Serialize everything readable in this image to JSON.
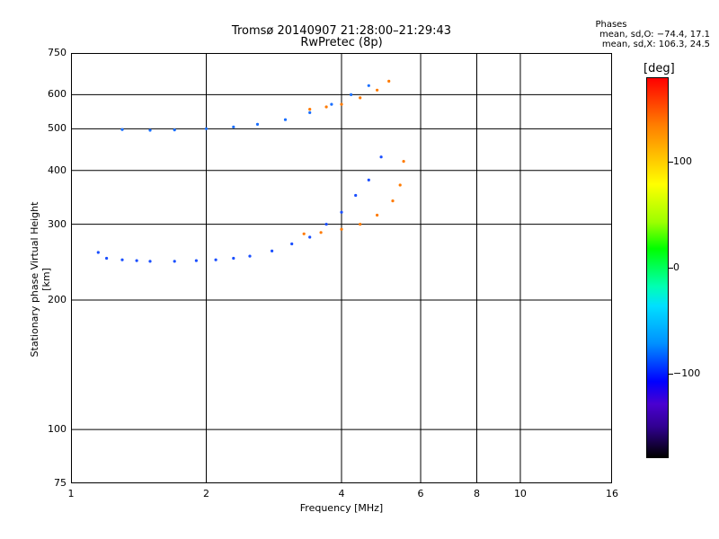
{
  "chart_data": {
    "type": "scatter",
    "title": "Tromsø 20140907 21:28:00–21:29:43",
    "subtitle": "RwPretec (8p)",
    "xlabel": "Frequency [MHz]",
    "ylabel": "Stationary phase Virtual Height [km]",
    "x_scale": "log",
    "y_scale": "log",
    "xlim": [
      1,
      16
    ],
    "ylim": [
      75,
      750
    ],
    "x_ticks": [
      1,
      2,
      4,
      6,
      8,
      10,
      16
    ],
    "y_ticks": [
      75,
      100,
      200,
      300,
      400,
      500,
      600,
      750
    ],
    "grid": true,
    "phase_stats": {
      "heading": "Phases",
      "o_mode": "mean, sd,O: −74.4, 17.1",
      "x_mode": "mean, sd,X: 106.3, 24.5"
    },
    "colorbar": {
      "title": "[deg]",
      "ticks": [
        "100",
        "0",
        "−100"
      ],
      "tick_values": [
        100,
        0,
        -100
      ],
      "range": [
        -180,
        180
      ],
      "colormap": "rainbow: black - purple - blue - cyan - green - yellow - orange - red"
    },
    "series": [
      {
        "name": "",
        "description_trace": "F-layer trace (lower)",
        "color": "#1a4fff",
        "x": [
          1.15,
          1.2,
          1.3,
          1.4,
          1.5,
          1.7,
          1.9,
          2.1,
          2.3,
          2.5,
          2.8,
          3.1,
          3.4,
          3.7,
          4.0,
          4.3,
          4.6,
          4.9
        ],
        "y": [
          258,
          250,
          248,
          247,
          246,
          246,
          247,
          248,
          250,
          253,
          260,
          270,
          280,
          300,
          320,
          350,
          380,
          430
        ]
      },
      {
        "name": "",
        "description_trace": "F-layer trace (lower, x-mode)",
        "color": "#ff7a00",
        "x": [
          3.3,
          3.6,
          4.0,
          4.4,
          4.8,
          5.2,
          5.4,
          5.5
        ],
        "y": [
          285,
          287,
          292,
          300,
          315,
          340,
          370,
          420
        ]
      },
      {
        "name": "",
        "description_trace": "multiple-hop trace (upper)",
        "color": "#1a6fff",
        "x": [
          1.3,
          1.5,
          1.7,
          2.0,
          2.3,
          2.6,
          3.0,
          3.4,
          3.8,
          4.2,
          4.6
        ],
        "y": [
          498,
          496,
          497,
          500,
          505,
          512,
          525,
          545,
          570,
          600,
          630
        ]
      },
      {
        "name": "",
        "description_trace": "multiple-hop trace (upper, x-mode)",
        "color": "#ff7a00",
        "x": [
          3.4,
          3.7,
          4.0,
          4.4,
          4.8,
          5.1
        ],
        "y": [
          555,
          562,
          570,
          590,
          615,
          645
        ]
      }
    ]
  }
}
